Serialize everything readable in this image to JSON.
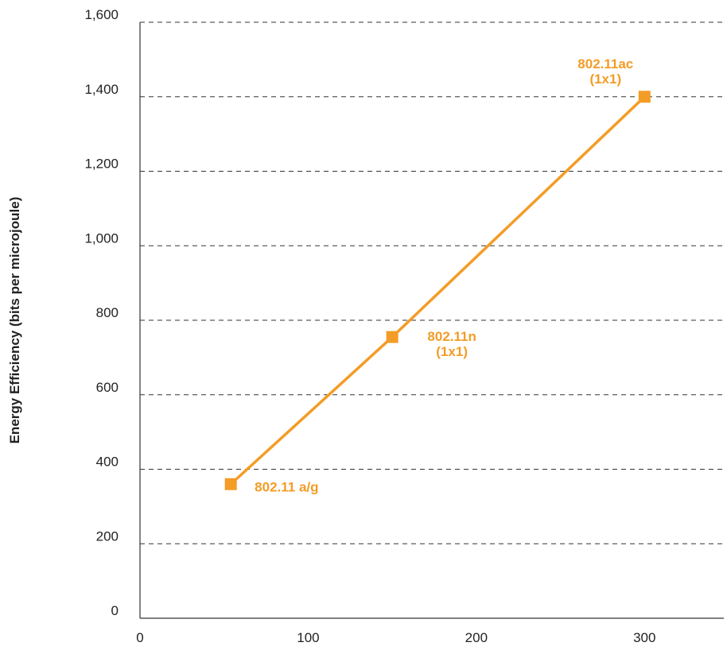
{
  "chart_data": {
    "type": "line",
    "title": "",
    "xlabel": "",
    "ylabel": "Energy Efficiency (bits per microjoule)",
    "xlim": [
      0,
      350
    ],
    "ylim": [
      0,
      1600
    ],
    "x_ticks": [
      0,
      100,
      200,
      300
    ],
    "y_ticks": [
      0,
      200,
      400,
      600,
      800,
      1000,
      1200,
      1400,
      1600
    ],
    "x_tick_labels": [
      "0",
      "100",
      "200",
      "300"
    ],
    "y_tick_labels": [
      "0",
      "200",
      "400",
      "600",
      "800",
      "1,000",
      "1,200",
      "1,400",
      "1,600"
    ],
    "grid": "horizontal dashed",
    "color": "#F39C26",
    "series": [
      {
        "points": [
          {
            "x": 54,
            "y": 360,
            "label": [
              "802.11 a/g"
            ]
          },
          {
            "x": 150,
            "y": 755,
            "label": [
              "802.11n",
              "(1x1)"
            ]
          },
          {
            "x": 300,
            "y": 1400,
            "label": [
              "802.11ac",
              "(1x1)"
            ]
          }
        ]
      }
    ]
  }
}
